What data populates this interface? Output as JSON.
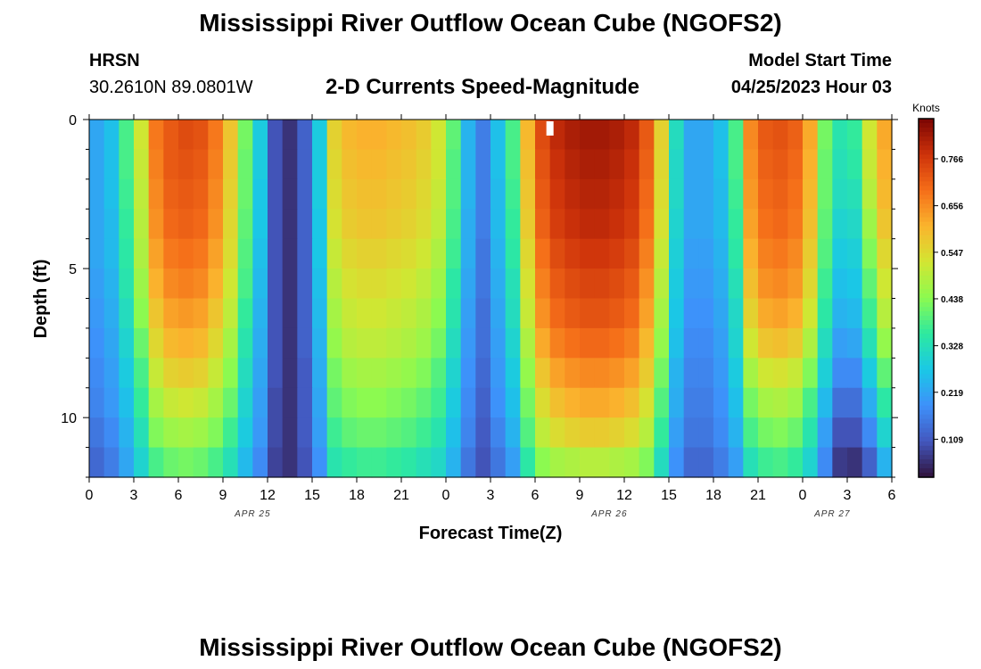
{
  "header": {
    "title": "Mississippi River Outflow Ocean Cube (NGOFS2)",
    "station": "HRSN",
    "coords": "30.2610N  89.0801W",
    "subtitle": "2-D Currents Speed-Magnitude",
    "model_start_label": "Model Start Time",
    "model_start_value": "04/25/2023 Hour 03",
    "footer_title": "Mississippi River Outflow Ocean Cube (NGOFS2)"
  },
  "chart_data": {
    "type": "heatmap",
    "title": "2-D Currents Speed-Magnitude",
    "xlabel": "Forecast Time(Z)",
    "ylabel": "Depth (ft)",
    "x_tick_labels": [
      "0",
      "3",
      "6",
      "9",
      "12",
      "15",
      "18",
      "21",
      "0",
      "3",
      "6",
      "9",
      "12",
      "15",
      "18",
      "21",
      "0",
      "3",
      "6"
    ],
    "date_labels": [
      {
        "label": "APR 25",
        "hour": 11
      },
      {
        "label": "APR 26",
        "hour": 35
      },
      {
        "label": "APR 27",
        "hour": 50
      }
    ],
    "y_ticks": [
      0,
      5,
      10
    ],
    "ylim": [
      0,
      12
    ],
    "x_range_hours": [
      0,
      54
    ],
    "colorbar": {
      "title": "Knots",
      "ticks": [
        0.109,
        0.219,
        0.328,
        0.438,
        0.547,
        0.656,
        0.766
      ],
      "range": [
        0.02,
        0.86
      ]
    },
    "x_hours": [
      0,
      1,
      2,
      3,
      4,
      5,
      6,
      7,
      8,
      9,
      10,
      11,
      12,
      13,
      14,
      15,
      16,
      17,
      18,
      19,
      20,
      21,
      22,
      23,
      24,
      25,
      26,
      27,
      28,
      29,
      30,
      31,
      32,
      33,
      34,
      35,
      36,
      37,
      38,
      39,
      40,
      41,
      42,
      43,
      44,
      45,
      46,
      47,
      48,
      49,
      50,
      51,
      52,
      53
    ],
    "depths_ft": [
      0.5,
      1.5,
      2.5,
      3.5,
      4.5,
      5.5,
      6.5,
      7.5,
      8.5,
      9.5,
      10.5,
      11.5
    ],
    "speed_knots": [
      [
        0.22,
        0.26,
        0.38,
        0.52,
        0.68,
        0.72,
        0.74,
        0.73,
        0.68,
        0.58,
        0.42,
        0.28,
        0.1,
        0.06,
        0.12,
        0.28,
        0.56,
        0.6,
        0.61,
        0.61,
        0.6,
        0.59,
        0.57,
        0.52,
        0.4,
        0.24,
        0.16,
        0.26,
        0.38,
        0.6,
        0.74,
        0.79,
        0.81,
        0.82,
        0.82,
        0.81,
        0.79,
        0.72,
        0.56,
        0.32,
        0.22,
        0.22,
        0.26,
        0.38,
        0.66,
        0.72,
        0.73,
        0.71,
        0.62,
        0.42,
        0.34,
        0.36,
        0.52,
        0.62
      ],
      [
        0.22,
        0.26,
        0.38,
        0.51,
        0.67,
        0.72,
        0.73,
        0.72,
        0.67,
        0.57,
        0.41,
        0.28,
        0.1,
        0.06,
        0.12,
        0.28,
        0.55,
        0.59,
        0.6,
        0.6,
        0.59,
        0.58,
        0.56,
        0.52,
        0.39,
        0.24,
        0.16,
        0.26,
        0.38,
        0.59,
        0.73,
        0.78,
        0.8,
        0.81,
        0.81,
        0.8,
        0.78,
        0.71,
        0.55,
        0.31,
        0.22,
        0.22,
        0.26,
        0.38,
        0.65,
        0.71,
        0.72,
        0.7,
        0.61,
        0.41,
        0.33,
        0.35,
        0.51,
        0.61
      ],
      [
        0.22,
        0.26,
        0.37,
        0.5,
        0.66,
        0.71,
        0.72,
        0.71,
        0.66,
        0.56,
        0.41,
        0.27,
        0.1,
        0.06,
        0.12,
        0.28,
        0.54,
        0.58,
        0.59,
        0.59,
        0.58,
        0.57,
        0.55,
        0.51,
        0.39,
        0.24,
        0.16,
        0.25,
        0.37,
        0.58,
        0.72,
        0.77,
        0.79,
        0.8,
        0.8,
        0.79,
        0.77,
        0.7,
        0.54,
        0.31,
        0.22,
        0.22,
        0.25,
        0.37,
        0.64,
        0.7,
        0.71,
        0.69,
        0.6,
        0.41,
        0.32,
        0.33,
        0.49,
        0.6
      ],
      [
        0.22,
        0.25,
        0.36,
        0.49,
        0.65,
        0.7,
        0.71,
        0.7,
        0.65,
        0.55,
        0.4,
        0.27,
        0.1,
        0.06,
        0.12,
        0.27,
        0.53,
        0.57,
        0.58,
        0.58,
        0.57,
        0.56,
        0.54,
        0.5,
        0.38,
        0.23,
        0.16,
        0.25,
        0.36,
        0.57,
        0.71,
        0.76,
        0.78,
        0.79,
        0.79,
        0.78,
        0.76,
        0.69,
        0.53,
        0.3,
        0.22,
        0.22,
        0.25,
        0.36,
        0.63,
        0.69,
        0.7,
        0.68,
        0.59,
        0.4,
        0.3,
        0.31,
        0.46,
        0.58
      ],
      [
        0.22,
        0.25,
        0.35,
        0.48,
        0.63,
        0.68,
        0.69,
        0.68,
        0.63,
        0.54,
        0.39,
        0.26,
        0.1,
        0.06,
        0.12,
        0.27,
        0.51,
        0.55,
        0.56,
        0.56,
        0.55,
        0.54,
        0.52,
        0.48,
        0.37,
        0.23,
        0.15,
        0.24,
        0.35,
        0.55,
        0.69,
        0.74,
        0.76,
        0.77,
        0.77,
        0.76,
        0.74,
        0.67,
        0.51,
        0.29,
        0.21,
        0.21,
        0.24,
        0.35,
        0.61,
        0.67,
        0.68,
        0.66,
        0.57,
        0.39,
        0.28,
        0.29,
        0.43,
        0.55
      ],
      [
        0.21,
        0.24,
        0.34,
        0.46,
        0.61,
        0.66,
        0.67,
        0.66,
        0.61,
        0.52,
        0.38,
        0.25,
        0.1,
        0.06,
        0.12,
        0.26,
        0.49,
        0.53,
        0.54,
        0.54,
        0.53,
        0.52,
        0.5,
        0.46,
        0.35,
        0.22,
        0.15,
        0.23,
        0.33,
        0.53,
        0.67,
        0.72,
        0.74,
        0.75,
        0.75,
        0.74,
        0.72,
        0.65,
        0.49,
        0.28,
        0.2,
        0.2,
        0.23,
        0.33,
        0.59,
        0.65,
        0.66,
        0.64,
        0.55,
        0.37,
        0.26,
        0.27,
        0.4,
        0.52
      ],
      [
        0.2,
        0.23,
        0.32,
        0.44,
        0.58,
        0.63,
        0.64,
        0.63,
        0.58,
        0.5,
        0.36,
        0.24,
        0.1,
        0.06,
        0.12,
        0.25,
        0.47,
        0.51,
        0.52,
        0.52,
        0.51,
        0.5,
        0.48,
        0.44,
        0.34,
        0.21,
        0.14,
        0.22,
        0.32,
        0.51,
        0.65,
        0.7,
        0.72,
        0.73,
        0.73,
        0.72,
        0.7,
        0.63,
        0.47,
        0.27,
        0.19,
        0.19,
        0.22,
        0.31,
        0.56,
        0.62,
        0.63,
        0.61,
        0.52,
        0.35,
        0.24,
        0.25,
        0.37,
        0.49
      ],
      [
        0.19,
        0.22,
        0.3,
        0.41,
        0.55,
        0.6,
        0.61,
        0.6,
        0.55,
        0.47,
        0.34,
        0.23,
        0.1,
        0.06,
        0.12,
        0.24,
        0.45,
        0.49,
        0.5,
        0.5,
        0.49,
        0.48,
        0.46,
        0.42,
        0.32,
        0.2,
        0.14,
        0.21,
        0.3,
        0.48,
        0.62,
        0.67,
        0.69,
        0.7,
        0.7,
        0.69,
        0.67,
        0.6,
        0.45,
        0.26,
        0.18,
        0.18,
        0.21,
        0.3,
        0.52,
        0.58,
        0.59,
        0.57,
        0.48,
        0.32,
        0.21,
        0.22,
        0.33,
        0.45
      ],
      [
        0.18,
        0.21,
        0.28,
        0.38,
        0.51,
        0.56,
        0.57,
        0.56,
        0.51,
        0.44,
        0.32,
        0.22,
        0.1,
        0.06,
        0.11,
        0.23,
        0.42,
        0.46,
        0.47,
        0.47,
        0.46,
        0.45,
        0.43,
        0.39,
        0.3,
        0.19,
        0.13,
        0.2,
        0.28,
        0.45,
        0.58,
        0.63,
        0.65,
        0.66,
        0.66,
        0.65,
        0.63,
        0.57,
        0.42,
        0.24,
        0.17,
        0.17,
        0.2,
        0.28,
        0.47,
        0.52,
        0.53,
        0.51,
        0.43,
        0.29,
        0.18,
        0.18,
        0.28,
        0.4
      ],
      [
        0.17,
        0.2,
        0.26,
        0.36,
        0.47,
        0.51,
        0.52,
        0.51,
        0.47,
        0.41,
        0.3,
        0.21,
        0.09,
        0.06,
        0.11,
        0.22,
        0.4,
        0.43,
        0.44,
        0.44,
        0.43,
        0.42,
        0.4,
        0.37,
        0.28,
        0.18,
        0.12,
        0.19,
        0.26,
        0.42,
        0.54,
        0.59,
        0.61,
        0.62,
        0.62,
        0.61,
        0.59,
        0.53,
        0.39,
        0.23,
        0.16,
        0.16,
        0.19,
        0.26,
        0.42,
        0.47,
        0.48,
        0.46,
        0.38,
        0.25,
        0.14,
        0.14,
        0.23,
        0.35
      ],
      [
        0.15,
        0.18,
        0.24,
        0.33,
        0.43,
        0.46,
        0.47,
        0.46,
        0.43,
        0.37,
        0.28,
        0.2,
        0.09,
        0.06,
        0.11,
        0.21,
        0.37,
        0.4,
        0.41,
        0.41,
        0.4,
        0.39,
        0.37,
        0.34,
        0.26,
        0.17,
        0.11,
        0.17,
        0.24,
        0.39,
        0.5,
        0.54,
        0.56,
        0.57,
        0.57,
        0.56,
        0.54,
        0.49,
        0.36,
        0.21,
        0.15,
        0.15,
        0.18,
        0.24,
        0.38,
        0.42,
        0.43,
        0.41,
        0.34,
        0.21,
        0.1,
        0.1,
        0.18,
        0.3
      ],
      [
        0.13,
        0.16,
        0.22,
        0.3,
        0.38,
        0.41,
        0.42,
        0.41,
        0.38,
        0.33,
        0.25,
        0.18,
        0.08,
        0.06,
        0.1,
        0.19,
        0.34,
        0.36,
        0.37,
        0.37,
        0.36,
        0.35,
        0.33,
        0.31,
        0.24,
        0.15,
        0.1,
        0.15,
        0.21,
        0.35,
        0.44,
        0.47,
        0.48,
        0.49,
        0.49,
        0.48,
        0.47,
        0.43,
        0.32,
        0.19,
        0.13,
        0.13,
        0.16,
        0.21,
        0.33,
        0.37,
        0.38,
        0.36,
        0.3,
        0.18,
        0.07,
        0.06,
        0.12,
        0.24
      ]
    ],
    "annotation_marker": {
      "hour": 31,
      "depth_ft": 0.3
    }
  }
}
